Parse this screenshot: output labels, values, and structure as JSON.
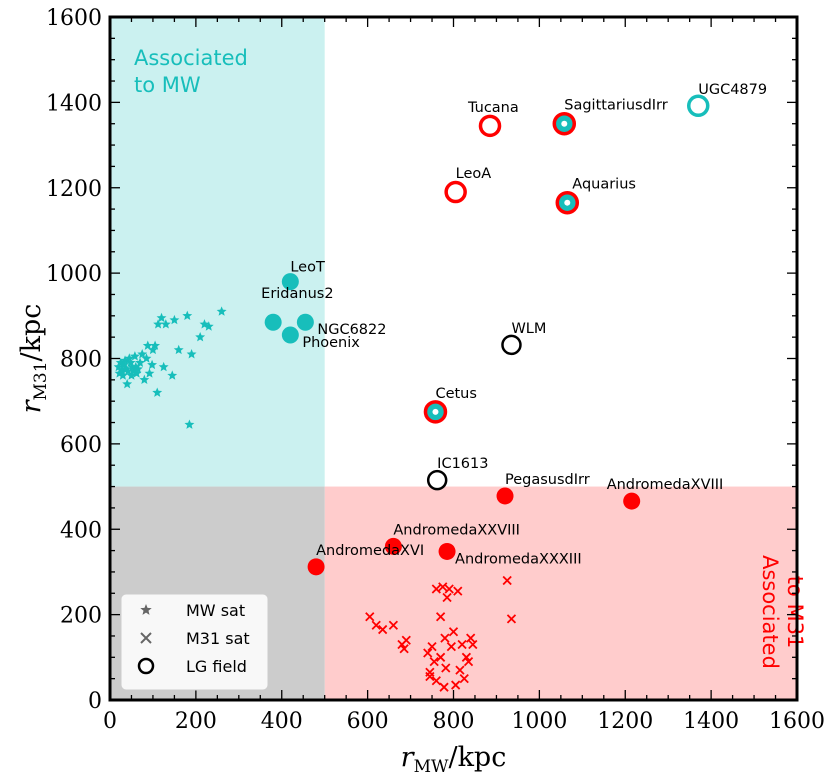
{
  "chart_data": {
    "type": "scatter",
    "xlabel": "r",
    "xlabel_sub": "MW",
    "xlabel_unit": "/kpc",
    "ylabel": "r",
    "ylabel_sub": "M31",
    "ylabel_unit": "/kpc",
    "xlim": [
      0,
      1600
    ],
    "ylim": [
      0,
      1600
    ],
    "xticks": [
      0,
      200,
      400,
      600,
      800,
      1000,
      1200,
      1400,
      1600
    ],
    "yticks": [
      0,
      200,
      400,
      600,
      800,
      1000,
      1200,
      1400,
      1600
    ],
    "colors": {
      "mw": "#17bebb",
      "m31": "#ff0000",
      "field": "#000000",
      "mw_region": "#cbf1f0",
      "m31_region": "#ffcccc",
      "overlap_region": "#cccccc"
    },
    "regions": [
      {
        "name": "mw",
        "label_lines": [
          "Associated",
          "to MW"
        ],
        "x": [
          0,
          500
        ],
        "y": [
          500,
          1600
        ]
      },
      {
        "name": "m31",
        "label_lines": [
          "Associated",
          "to M31"
        ],
        "x": [
          500,
          1600
        ],
        "y": [
          0,
          500
        ]
      },
      {
        "name": "overlap",
        "x": [
          0,
          500
        ],
        "y": [
          0,
          500
        ]
      }
    ],
    "legend": {
      "placement": "lower-left",
      "entries": [
        {
          "marker": "star",
          "label": "MW sat"
        },
        {
          "marker": "x",
          "label": "M31 sat"
        },
        {
          "marker": "open-circle",
          "label": "LG field"
        }
      ]
    },
    "mw_satellites": [
      [
        20,
        780
      ],
      [
        22,
        765
      ],
      [
        25,
        790
      ],
      [
        28,
        772
      ],
      [
        30,
        760
      ],
      [
        32,
        785
      ],
      [
        35,
        795
      ],
      [
        38,
        775
      ],
      [
        40,
        740
      ],
      [
        42,
        770
      ],
      [
        45,
        800
      ],
      [
        48,
        790
      ],
      [
        50,
        760
      ],
      [
        52,
        780
      ],
      [
        55,
        770
      ],
      [
        58,
        805
      ],
      [
        60,
        780
      ],
      [
        62,
        765
      ],
      [
        65,
        775
      ],
      [
        70,
        790
      ],
      [
        75,
        810
      ],
      [
        80,
        750
      ],
      [
        85,
        800
      ],
      [
        88,
        830
      ],
      [
        92,
        765
      ],
      [
        98,
        785
      ],
      [
        100,
        820
      ],
      [
        105,
        830
      ],
      [
        110,
        720
      ],
      [
        112,
        880
      ],
      [
        120,
        895
      ],
      [
        125,
        780
      ],
      [
        130,
        880
      ],
      [
        145,
        760
      ],
      [
        150,
        890
      ],
      [
        160,
        820
      ],
      [
        180,
        900
      ],
      [
        185,
        645
      ],
      [
        190,
        810
      ],
      [
        210,
        850
      ],
      [
        220,
        880
      ],
      [
        230,
        875
      ],
      [
        260,
        910
      ]
    ],
    "m31_satellites": [
      [
        605,
        195
      ],
      [
        620,
        175
      ],
      [
        635,
        165
      ],
      [
        660,
        175
      ],
      [
        680,
        130
      ],
      [
        685,
        120
      ],
      [
        690,
        140
      ],
      [
        740,
        110
      ],
      [
        745,
        65
      ],
      [
        745,
        55
      ],
      [
        750,
        125
      ],
      [
        755,
        90
      ],
      [
        760,
        45
      ],
      [
        760,
        260
      ],
      [
        770,
        100
      ],
      [
        770,
        195
      ],
      [
        775,
        265
      ],
      [
        778,
        30
      ],
      [
        780,
        145
      ],
      [
        782,
        75
      ],
      [
        785,
        240
      ],
      [
        790,
        260
      ],
      [
        795,
        125
      ],
      [
        800,
        160
      ],
      [
        805,
        35
      ],
      [
        810,
        255
      ],
      [
        815,
        70
      ],
      [
        820,
        130
      ],
      [
        825,
        50
      ],
      [
        830,
        100
      ],
      [
        835,
        90
      ],
      [
        840,
        145
      ],
      [
        845,
        130
      ],
      [
        925,
        280
      ],
      [
        935,
        190
      ]
    ],
    "named_points": [
      {
        "name": "LeoT",
        "x": 420,
        "y": 980,
        "style": "mw-filled",
        "label_dx": 0,
        "label_dy": -10,
        "anchor": "start"
      },
      {
        "name": "Eridanus2",
        "x": 380,
        "y": 885,
        "style": "mw-filled",
        "label_dx": -12,
        "label_dy": -24,
        "anchor": "start"
      },
      {
        "name": "NGC6822",
        "x": 455,
        "y": 885,
        "style": "mw-filled",
        "label_dx": 12,
        "label_dy": 12,
        "anchor": "start"
      },
      {
        "name": "Phoenix",
        "x": 420,
        "y": 855,
        "style": "mw-filled",
        "label_dx": 12,
        "label_dy": 12,
        "anchor": "start"
      },
      {
        "name": "Tucana",
        "x": 885,
        "y": 1345,
        "style": "m31-open",
        "label_dx": -22,
        "label_dy": -14,
        "anchor": "start"
      },
      {
        "name": "SagittariusdIrr",
        "x": 1058,
        "y": 1350,
        "style": "both",
        "label_dx": 0,
        "label_dy": -14,
        "anchor": "start"
      },
      {
        "name": "UGC4879",
        "x": 1370,
        "y": 1392,
        "style": "mw-open",
        "label_dx": 0,
        "label_dy": -12,
        "anchor": "start"
      },
      {
        "name": "LeoA",
        "x": 805,
        "y": 1190,
        "style": "m31-open",
        "label_dx": 0,
        "label_dy": -14,
        "anchor": "start"
      },
      {
        "name": "Aquarius",
        "x": 1065,
        "y": 1165,
        "style": "both",
        "label_dx": 5,
        "label_dy": -14,
        "anchor": "start"
      },
      {
        "name": "WLM",
        "x": 935,
        "y": 832,
        "style": "field",
        "label_dx": 0,
        "label_dy": -12,
        "anchor": "start"
      },
      {
        "name": "Cetus",
        "x": 758,
        "y": 675,
        "style": "both",
        "label_dx": 0,
        "label_dy": -14,
        "anchor": "start"
      },
      {
        "name": "IC1613",
        "x": 762,
        "y": 515,
        "style": "field",
        "label_dx": 0,
        "label_dy": -12,
        "anchor": "start"
      },
      {
        "name": "PegasusdIrr",
        "x": 920,
        "y": 478,
        "style": "m31-filled",
        "label_dx": 0,
        "label_dy": -12,
        "anchor": "start"
      },
      {
        "name": "AndromedaXVIII",
        "x": 1215,
        "y": 466,
        "style": "m31-filled",
        "label_dx": -25,
        "label_dy": -12,
        "anchor": "start"
      },
      {
        "name": "AndromedaXXVIII",
        "x": 660,
        "y": 360,
        "style": "m31-filled",
        "label_dx": 0,
        "label_dy": -12,
        "anchor": "start"
      },
      {
        "name": "AndromedaXVI",
        "x": 480,
        "y": 312,
        "style": "m31-filled",
        "label_dx": 0,
        "label_dy": -12,
        "anchor": "start"
      },
      {
        "name": "AndromedaXXXIII",
        "x": 785,
        "y": 348,
        "style": "m31-filled",
        "label_dx": 8,
        "label_dy": 12,
        "anchor": "start"
      }
    ]
  }
}
